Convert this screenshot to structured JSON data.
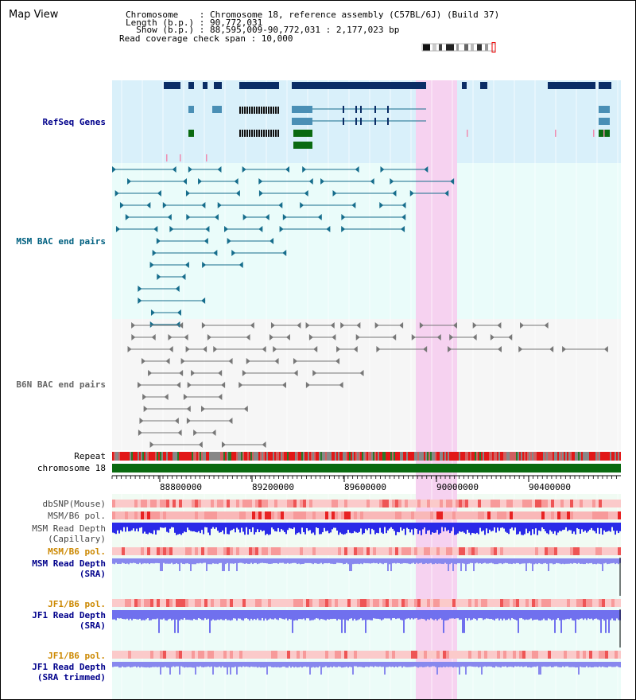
{
  "view": {
    "title": "Map View"
  },
  "info": {
    "chromosome_line": "Chromosome    : Chromosome 18, reference assembly (C57BL/6J) (Build 37)",
    "length_line": "Length (b.p.) : 90,772,031",
    "show_line": "  Show (b.p.) : 88,595,009-90,772,031 : 2,177,023 bp",
    "coverage_line": "Read coverage check span : 10,000"
  },
  "tracks": {
    "refseq": "RefSeq Genes",
    "msm_bac": "MSM BAC end pairs",
    "b6n_bac": "B6N BAC end pairs",
    "repeat": "Repeat",
    "chromosome": "chromosome 18",
    "dbsnp": "dbSNP(Mouse)",
    "msm_b6_pol": "MSM/B6 pol.",
    "msm_depth_cap": "MSM Read Depth",
    "msm_depth_cap_sub": "(Capillary)",
    "msm_b6_pol2": "MSM/B6 pol.",
    "msm_depth_sra": "MSM Read Depth",
    "msm_depth_sra_sub": "(SRA)",
    "jf1_pol": "JF1/B6 pol.",
    "jf1_depth": "JF1 Read Depth",
    "jf1_depth_sub": "(SRA)",
    "jf1_pol2": "JF1/B6 pol.",
    "jf1_depth_trim": "JF1 Read Depth",
    "jf1_depth_trim_sub": "(SRA trimmed)"
  },
  "axis": {
    "ticks": [
      "88800000",
      "89200000",
      "89600000",
      "90000000",
      "90400000"
    ]
  },
  "colors": {
    "refseq_bg": "#d9f0fa",
    "bac_bg": "#eafcfa",
    "highlight": "#f6d2f0",
    "gene_dark": "#0b2d66",
    "gene_mid": "#4a8fb5",
    "gene_green": "#0a6a10",
    "msm_bac": "#166d8c",
    "b6n_bac": "#777777",
    "label_blue": "#00008b",
    "label_teal": "#006080",
    "label_gray": "#666666",
    "label_orange": "#cc8800"
  }
}
